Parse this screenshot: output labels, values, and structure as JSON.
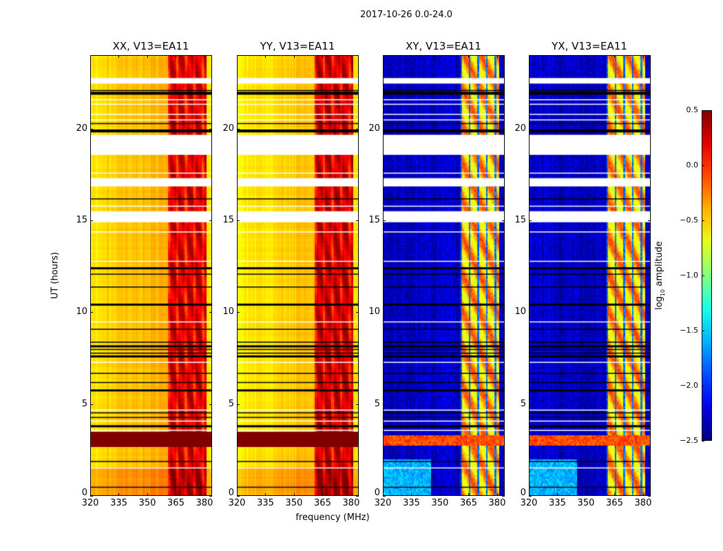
{
  "chart_data": {
    "type": "heatmap",
    "title": "2017-10-26 0.0-24.0",
    "xlabel": "frequency (MHz)",
    "ylabel": "UT (hours)",
    "xlim": [
      320,
      384
    ],
    "ylim": [
      0,
      24
    ],
    "xticks": [
      "320",
      "335",
      "350",
      "365",
      "380"
    ],
    "xtick_values": [
      320,
      335,
      350,
      365,
      380
    ],
    "yticks": [
      "0",
      "5",
      "10",
      "15",
      "20"
    ],
    "ytick_values": [
      0,
      5,
      10,
      15,
      20
    ],
    "colormap": "jet",
    "colorbar": {
      "label_main": "log",
      "label_sub": "10",
      "label_rest": " amplitude",
      "range": [
        -2.5,
        0.5
      ],
      "ticks": [
        "0.5",
        "0.0",
        "−0.5",
        "−1.0",
        "−1.5",
        "−2.0",
        "−2.5"
      ],
      "tick_values": [
        0.5,
        0.0,
        -0.5,
        -1.0,
        -1.5,
        -2.0,
        -2.5
      ]
    },
    "panels": [
      {
        "title": "XX, V13=EA11",
        "kind": "parallel",
        "base_level": -0.55,
        "band_level": 0.15
      },
      {
        "title": "YY, V13=EA11",
        "kind": "parallel",
        "base_level": -0.6,
        "band_level": 0.2
      },
      {
        "title": "XY, V13=EA11",
        "kind": "cross",
        "base_level": -2.3,
        "band_level": -0.4
      },
      {
        "title": "YX, V13=EA11",
        "kind": "cross",
        "base_level": -2.3,
        "band_level": -0.4
      }
    ],
    "bright_band_mhz": [
      360.5,
      381
    ],
    "blank_intervals_hours": [
      [
        22.45,
        22.75
      ],
      [
        18.57,
        19.66
      ],
      [
        16.85,
        17.3
      ],
      [
        14.9,
        15.5
      ]
    ],
    "flagged_hours": [
      22.1,
      22.0,
      21.9,
      20.3,
      19.95,
      19.85,
      16.2,
      12.45,
      12.1,
      11.4,
      10.47,
      9.1,
      8.4,
      8.2,
      8.0,
      7.8,
      7.65,
      6.7,
      6.2,
      5.8,
      4.55,
      4.3,
      3.85,
      1.9,
      0.5
    ],
    "white_line_hours": [
      21.6,
      21.35,
      20.8,
      20.5,
      17.6,
      15.8,
      14.4,
      12.8,
      9.5,
      7.3,
      4.7,
      4.1,
      3.6,
      1.55
    ],
    "saturated_interval_hours": [
      2.7,
      3.5
    ]
  }
}
